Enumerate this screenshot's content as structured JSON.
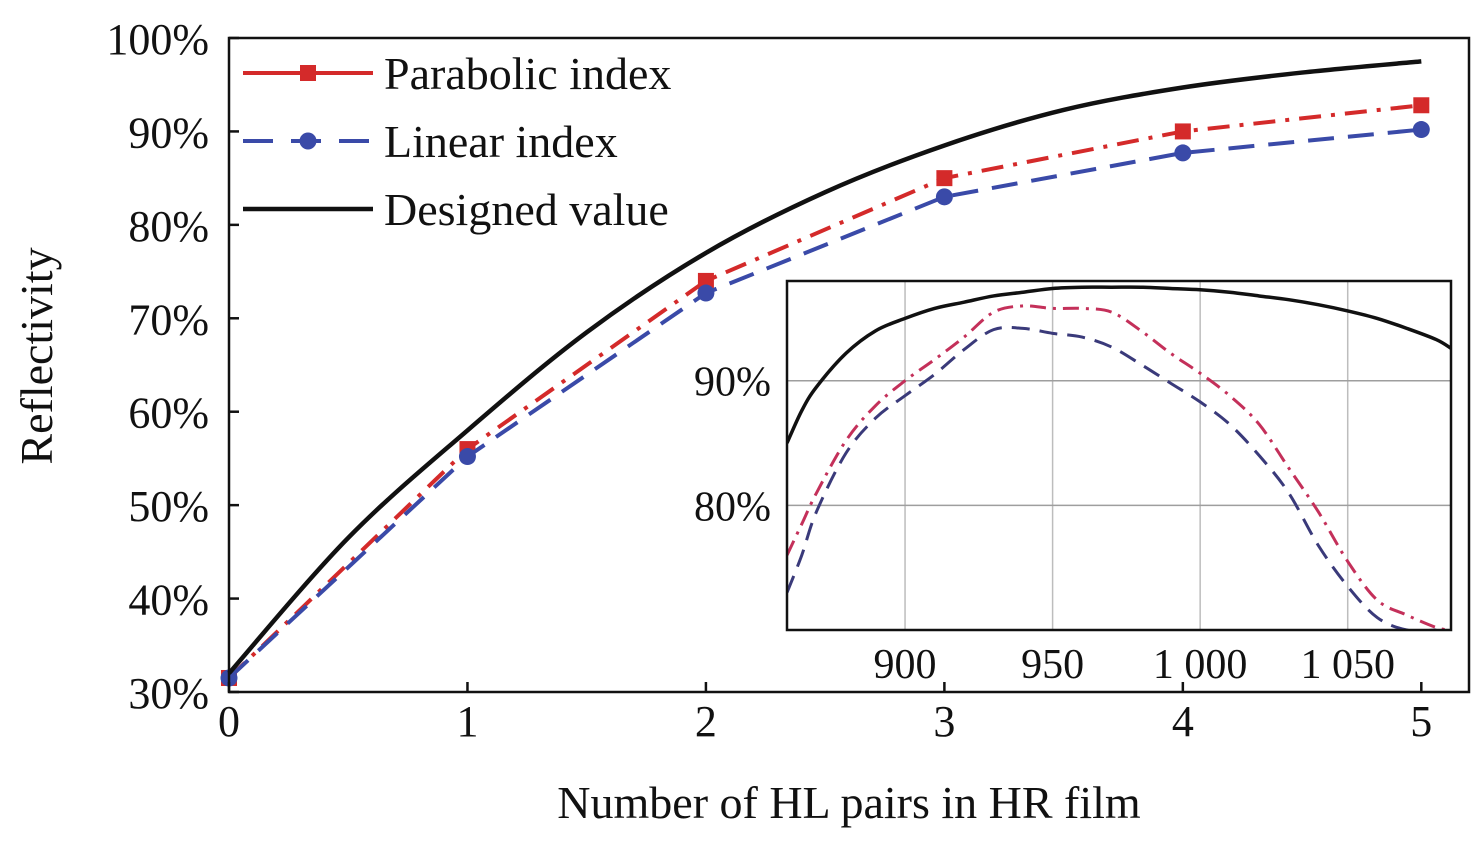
{
  "chart_data": [
    {
      "type": "line",
      "title": "",
      "xlabel": "Number of HL pairs in HR film",
      "ylabel": "Reflectivity",
      "xlim": [
        0,
        5.2
      ],
      "ylim": [
        30,
        100
      ],
      "xticks": [
        0,
        1,
        2,
        3,
        4,
        5
      ],
      "xtick_labels": [
        "0",
        "1",
        "2",
        "3",
        "4",
        "5"
      ],
      "yticks": [
        30,
        40,
        50,
        60,
        70,
        80,
        90,
        100
      ],
      "ytick_labels": [
        "30%",
        "40%",
        "50%",
        "60%",
        "70%",
        "80%",
        "90%",
        "100%"
      ],
      "legend_position": "top-left",
      "grid": false,
      "series": [
        {
          "name": "Parabolic index",
          "color": "#d42a2a",
          "style": "dash-dot",
          "marker": "square",
          "x": [
            0,
            1,
            2,
            3,
            4,
            5
          ],
          "y": [
            31.5,
            56,
            74,
            85,
            90,
            92.8
          ]
        },
        {
          "name": "Linear index",
          "color": "#3a4aa8",
          "style": "dashed",
          "marker": "circle",
          "x": [
            0,
            1,
            2,
            3,
            4,
            5
          ],
          "y": [
            31.5,
            55.2,
            72.7,
            83,
            87.7,
            90.2
          ]
        },
        {
          "name": "Designed value",
          "color": "#111111",
          "style": "solid",
          "marker": "none",
          "x": [
            0,
            0.5,
            1,
            1.5,
            2,
            2.5,
            3,
            3.5,
            4,
            4.5,
            5
          ],
          "y": [
            32,
            46.5,
            58,
            68.5,
            77,
            83.5,
            88.5,
            92.3,
            94.7,
            96.3,
            97.5
          ]
        }
      ]
    },
    {
      "type": "line",
      "title": "",
      "xlabel": "",
      "ylabel": "",
      "xlim": [
        860,
        1085
      ],
      "ylim": [
        70,
        98
      ],
      "xticks": [
        900,
        950,
        1000,
        1050
      ],
      "xtick_labels": [
        "900",
        "950",
        "1 000",
        "1 050"
      ],
      "yticks": [
        80,
        90
      ],
      "ytick_labels": [
        "80%",
        "90%"
      ],
      "grid": true,
      "series": [
        {
          "name": "",
          "color": "#111111",
          "style": "solid",
          "x": [
            860,
            865,
            870,
            880,
            890,
            900,
            910,
            920,
            930,
            940,
            950,
            960,
            970,
            980,
            990,
            1000,
            1010,
            1020,
            1030,
            1040,
            1050,
            1060,
            1070,
            1080,
            1085
          ],
          "y": [
            85,
            87.6,
            89.5,
            92.2,
            94,
            95,
            95.8,
            96.3,
            96.8,
            97.1,
            97.4,
            97.5,
            97.5,
            97.5,
            97.4,
            97.3,
            97.1,
            96.8,
            96.5,
            96.1,
            95.6,
            95,
            94.2,
            93.3,
            92.6
          ]
        },
        {
          "name": "",
          "color": "#c4305a",
          "style": "dash-dot",
          "x": [
            860,
            865,
            870,
            880,
            890,
            900,
            910,
            920,
            930,
            940,
            950,
            960,
            970,
            980,
            990,
            1000,
            1010,
            1020,
            1030,
            1040,
            1050,
            1060,
            1070,
            1080,
            1085
          ],
          "y": [
            76,
            78.5,
            81,
            85.2,
            88,
            90,
            91.7,
            93.5,
            95.5,
            96,
            95.8,
            95.8,
            95.5,
            94,
            92.2,
            90.6,
            88.8,
            86.5,
            83,
            79.5,
            75.5,
            72.4,
            71.2,
            70.2,
            70
          ]
        },
        {
          "name": "",
          "color": "#3a3a7a",
          "style": "dashed",
          "x": [
            860,
            865,
            870,
            880,
            890,
            900,
            910,
            920,
            930,
            940,
            950,
            960,
            970,
            980,
            990,
            1000,
            1010,
            1020,
            1030,
            1040,
            1050,
            1060,
            1070,
            1080
          ],
          "y": [
            73,
            76,
            79.5,
            84.2,
            87,
            88.8,
            90.5,
            92.5,
            94.1,
            94.2,
            93.8,
            93.5,
            92.7,
            91.3,
            89.8,
            88.3,
            86.5,
            84,
            81,
            76.8,
            73.5,
            71,
            70,
            70
          ]
        }
      ]
    }
  ]
}
